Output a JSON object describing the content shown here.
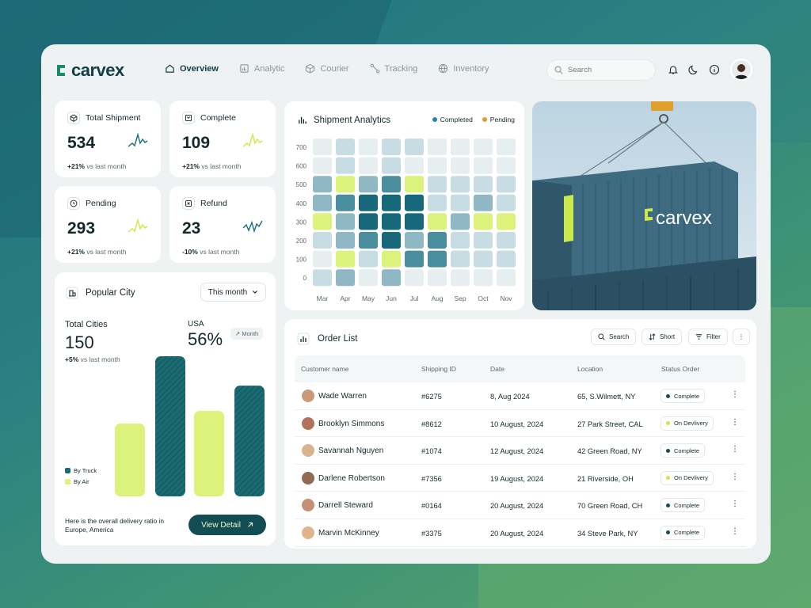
{
  "brand": {
    "name": "carvex",
    "accent": "#124d54",
    "lime": "#dcf27a"
  },
  "nav": [
    {
      "label": "Overview",
      "icon": "home-icon",
      "active": true
    },
    {
      "label": "Analytic",
      "icon": "bar-chart-icon"
    },
    {
      "label": "Courier",
      "icon": "box-icon"
    },
    {
      "label": "Tracking",
      "icon": "route-icon"
    },
    {
      "label": "Inventory",
      "icon": "globe-icon"
    }
  ],
  "search": {
    "placeholder": "Search"
  },
  "stats": [
    {
      "title": "Total Shipment",
      "value": "534",
      "change": "+21%",
      "suffix": "vs last month",
      "spark": "teal"
    },
    {
      "title": "Complete",
      "value": "109",
      "change": "+21%",
      "suffix": "vs last month",
      "spark": "lime"
    },
    {
      "title": "Pending",
      "value": "293",
      "change": "+21%",
      "suffix": "vs last month",
      "spark": "lime"
    },
    {
      "title": "Refund",
      "value": "23",
      "change": "-10%",
      "suffix": "vs last month",
      "spark": "teal"
    }
  ],
  "popular_city": {
    "title": "Popular City",
    "period": "This month",
    "total_label": "Total Cities",
    "total_value": "150",
    "total_change": "+5%",
    "total_suffix": "vs last month",
    "region_label": "USA",
    "region_value": "56%",
    "pill": "Month",
    "legend": [
      "By Truck",
      "By Air"
    ],
    "bars": [
      {
        "type": "air",
        "value": 0.52
      },
      {
        "type": "truck",
        "value": 1.0
      },
      {
        "type": "air",
        "value": 0.61
      },
      {
        "type": "truck",
        "value": 0.79
      }
    ],
    "note": "Here is the overall delivery ratio in Europe, America",
    "cta": "View Detail"
  },
  "shipment_analytics": {
    "title": "Shipment Analytics",
    "legend": [
      {
        "label": "Completed",
        "color": "#2d7fb8"
      },
      {
        "label": "Pending",
        "color": "#e99a2c"
      }
    ],
    "y_ticks": [
      "700",
      "600",
      "500",
      "400",
      "300",
      "200",
      "100",
      "0"
    ],
    "months": [
      "Mar",
      "Apr",
      "May",
      "Jun",
      "Jul",
      "Aug",
      "Sep",
      "Oct",
      "Nov"
    ],
    "levels": [
      [
        1,
        2,
        1,
        2,
        2,
        1,
        1,
        1,
        1
      ],
      [
        1,
        2,
        1,
        2,
        1,
        1,
        1,
        1,
        1
      ],
      [
        3,
        5,
        3,
        4,
        5,
        2,
        2,
        2,
        2
      ],
      [
        3,
        4,
        6,
        6,
        6,
        2,
        2,
        3,
        2
      ],
      [
        5,
        3,
        6,
        6,
        6,
        5,
        3,
        5,
        5
      ],
      [
        2,
        3,
        4,
        6,
        3,
        4,
        2,
        2,
        2
      ],
      [
        1,
        5,
        2,
        5,
        4,
        4,
        2,
        2,
        2
      ],
      [
        2,
        3,
        1,
        3,
        1,
        1,
        1,
        1,
        1
      ]
    ]
  },
  "photo": {
    "label": "carvex"
  },
  "order_list": {
    "title": "Order List",
    "actions": [
      "Search",
      "Short",
      "Filter"
    ],
    "columns": [
      "Customer name",
      "Shipping ID",
      "Date",
      "Location",
      "Status Order"
    ],
    "rows": [
      {
        "name": "Wade Warren",
        "id": "#6275",
        "date": "8, Aug 2024",
        "location": "65, S.Wilmett, NY",
        "status": "Complete"
      },
      {
        "name": "Brooklyn Simmons",
        "id": "#8612",
        "date": "10 August, 2024",
        "location": "27 Park Street, CAL",
        "status": "On Devlivery"
      },
      {
        "name": "Savannah Nguyen",
        "id": "#1074",
        "date": "12 August, 2024",
        "location": "42 Green Road, NY",
        "status": "Complete"
      },
      {
        "name": "Darlene Robertson",
        "id": "#7356",
        "date": "19 August, 2024",
        "location": "21 Riverside, OH",
        "status": "On Devlivery"
      },
      {
        "name": "Darrell Steward",
        "id": "#0164",
        "date": "20 August, 2024",
        "location": "70 Green Road, CH",
        "status": "Complete"
      },
      {
        "name": "Marvin McKinney",
        "id": "#3375",
        "date": "20 August, 2024",
        "location": "34 Steve Park, NY",
        "status": "Complete"
      }
    ]
  }
}
